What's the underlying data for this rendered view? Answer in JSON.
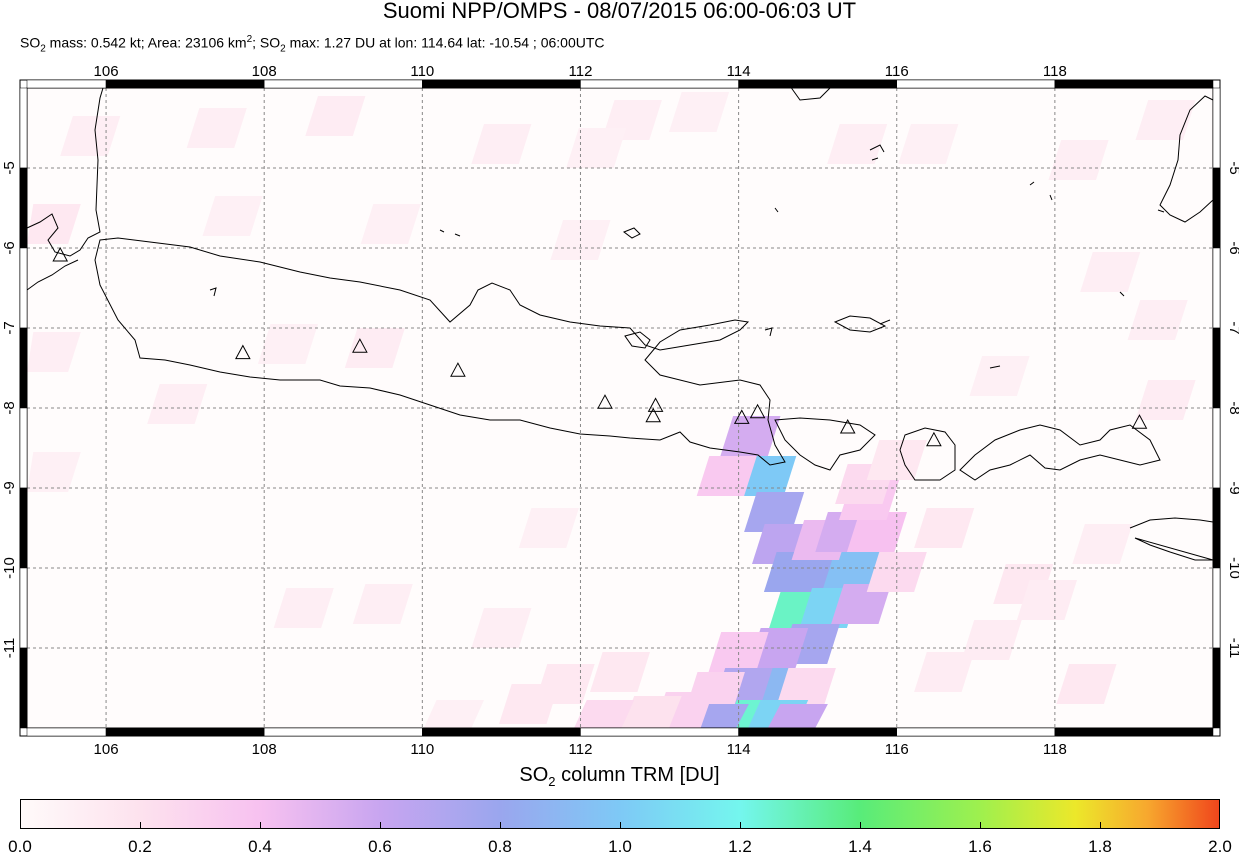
{
  "title": "Suomi NPP/OMPS - 08/07/2015 06:00-06:03 UT",
  "subtitle": {
    "so2_label": "SO",
    "so2_sub": "2",
    "mass_text": " mass: 0.542 kt; Area: 23106 km",
    "area_sup": "2",
    "sep": "; SO",
    "max_sub": "2",
    "max_text": " max: 1.27 DU at lon: 114.64 lat: -10.54 ; 06:00UTC"
  },
  "map": {
    "lon_range": [
      105,
      120
    ],
    "lat_range": [
      -12,
      -4
    ],
    "lon_ticks": [
      "106",
      "108",
      "110",
      "112",
      "114",
      "116",
      "118"
    ],
    "lat_ticks": [
      "-5",
      "-6",
      "-7",
      "-8",
      "-9",
      "-10",
      "-11"
    ],
    "grid": true,
    "volcano_icon": "triangle-icon",
    "volcanoes": [
      {
        "lon": 105.42,
        "lat": -6.1
      },
      {
        "lon": 107.73,
        "lat": -7.32
      },
      {
        "lon": 109.21,
        "lat": -7.24
      },
      {
        "lon": 110.45,
        "lat": -7.54
      },
      {
        "lon": 112.31,
        "lat": -7.94
      },
      {
        "lon": 112.95,
        "lat": -7.98
      },
      {
        "lon": 112.92,
        "lat": -8.11
      },
      {
        "lon": 114.04,
        "lat": -8.13
      },
      {
        "lon": 114.24,
        "lat": -8.06
      },
      {
        "lon": 115.38,
        "lat": -8.25
      },
      {
        "lon": 116.47,
        "lat": -8.41
      },
      {
        "lon": 119.07,
        "lat": -8.19
      }
    ],
    "so2_pixels": [
      {
        "lon": 114.15,
        "lat": -8.35,
        "du": 0.55
      },
      {
        "lon": 114.35,
        "lat": -8.85,
        "du": 1.0
      },
      {
        "lon": 113.85,
        "lat": -8.85,
        "du": 0.35
      },
      {
        "lon": 114.45,
        "lat": -9.3,
        "du": 0.75
      },
      {
        "lon": 114.55,
        "lat": -9.7,
        "du": 0.65
      },
      {
        "lon": 114.7,
        "lat": -10.05,
        "du": 0.8
      },
      {
        "lon": 115.05,
        "lat": -10.05,
        "du": 0.8
      },
      {
        "lon": 115.45,
        "lat": -10.0,
        "du": 0.95
      },
      {
        "lon": 115.05,
        "lat": -9.65,
        "du": 0.45
      },
      {
        "lon": 115.35,
        "lat": -9.55,
        "du": 0.55
      },
      {
        "lon": 115.75,
        "lat": -9.55,
        "du": 0.4
      },
      {
        "lon": 115.65,
        "lat": -9.15,
        "du": 0.35
      },
      {
        "lon": 114.75,
        "lat": -10.55,
        "du": 1.27
      },
      {
        "lon": 115.15,
        "lat": -10.5,
        "du": 1.05
      },
      {
        "lon": 115.55,
        "lat": -10.45,
        "du": 0.55
      },
      {
        "lon": 114.9,
        "lat": -10.95,
        "du": 0.75
      },
      {
        "lon": 114.5,
        "lat": -11.0,
        "du": 0.6
      },
      {
        "lon": 114.0,
        "lat": -11.05,
        "du": 0.35
      },
      {
        "lon": 114.4,
        "lat": -11.5,
        "du": 0.9
      },
      {
        "lon": 114.05,
        "lat": -11.5,
        "du": 0.7
      },
      {
        "lon": 114.85,
        "lat": -11.5,
        "du": 0.25
      },
      {
        "lon": 113.7,
        "lat": -11.55,
        "du": 0.3
      },
      {
        "lon": 114.2,
        "lat": -11.9,
        "du": 1.25
      },
      {
        "lon": 114.5,
        "lat": -11.9,
        "du": 1.05
      },
      {
        "lon": 113.75,
        "lat": -11.95,
        "du": 0.75
      },
      {
        "lon": 114.75,
        "lat": -11.95,
        "du": 0.6
      },
      {
        "lon": 113.3,
        "lat": -11.8,
        "du": 0.3
      },
      {
        "lon": 112.9,
        "lat": -11.85,
        "du": 0.2
      },
      {
        "lon": 112.3,
        "lat": -11.9,
        "du": 0.25
      },
      {
        "lon": 112.5,
        "lat": -11.3,
        "du": 0.15
      },
      {
        "lon": 111.8,
        "lat": -11.45,
        "du": 0.15
      },
      {
        "lon": 111.35,
        "lat": -11.7,
        "du": 0.15
      },
      {
        "lon": 111.0,
        "lat": -10.75,
        "du": 0.1
      },
      {
        "lon": 109.5,
        "lat": -10.45,
        "du": 0.1
      },
      {
        "lon": 108.5,
        "lat": -10.5,
        "du": 0.1
      },
      {
        "lon": 116.0,
        "lat": -10.05,
        "du": 0.25
      },
      {
        "lon": 116.6,
        "lat": -9.5,
        "du": 0.15
      },
      {
        "lon": 117.6,
        "lat": -10.2,
        "du": 0.15
      },
      {
        "lon": 117.2,
        "lat": -10.9,
        "du": 0.12
      },
      {
        "lon": 116.6,
        "lat": -11.3,
        "du": 0.12
      },
      {
        "lon": 118.4,
        "lat": -11.45,
        "du": 0.15
      },
      {
        "lon": 117.9,
        "lat": -10.4,
        "du": 0.12
      },
      {
        "lon": 118.6,
        "lat": -9.7,
        "du": 0.1
      },
      {
        "lon": 115.6,
        "lat": -8.95,
        "du": 0.25
      },
      {
        "lon": 116.0,
        "lat": -8.65,
        "du": 0.15
      },
      {
        "lon": 109.4,
        "lat": -7.25,
        "du": 0.12
      },
      {
        "lon": 108.3,
        "lat": -7.2,
        "du": 0.08
      },
      {
        "lon": 106.9,
        "lat": -7.95,
        "du": 0.1
      },
      {
        "lon": 105.3,
        "lat": -7.3,
        "du": 0.1
      },
      {
        "lon": 105.3,
        "lat": -8.8,
        "du": 0.08
      },
      {
        "lon": 112.65,
        "lat": -4.4,
        "du": 0.1
      },
      {
        "lon": 112.2,
        "lat": -4.75,
        "du": 0.08
      },
      {
        "lon": 111.0,
        "lat": -4.7,
        "du": 0.1
      },
      {
        "lon": 108.9,
        "lat": -4.35,
        "du": 0.12
      },
      {
        "lon": 107.4,
        "lat": -4.5,
        "du": 0.1
      },
      {
        "lon": 105.8,
        "lat": -4.6,
        "du": 0.1
      },
      {
        "lon": 105.3,
        "lat": -5.7,
        "du": 0.15
      },
      {
        "lon": 107.6,
        "lat": -5.6,
        "du": 0.08
      },
      {
        "lon": 109.6,
        "lat": -5.7,
        "du": 0.08
      },
      {
        "lon": 112.0,
        "lat": -5.9,
        "du": 0.08
      },
      {
        "lon": 115.5,
        "lat": -4.7,
        "du": 0.1
      },
      {
        "lon": 116.4,
        "lat": -4.7,
        "du": 0.08
      },
      {
        "lon": 113.5,
        "lat": -4.3,
        "du": 0.08
      },
      {
        "lon": 118.7,
        "lat": -6.3,
        "du": 0.1
      },
      {
        "lon": 119.3,
        "lat": -6.9,
        "du": 0.1
      },
      {
        "lon": 119.4,
        "lat": -7.9,
        "du": 0.12
      },
      {
        "lon": 117.3,
        "lat": -7.6,
        "du": 0.08
      },
      {
        "lon": 118.3,
        "lat": -4.9,
        "du": 0.1
      },
      {
        "lon": 119.4,
        "lat": -4.4,
        "du": 0.1
      },
      {
        "lon": 111.6,
        "lat": -9.5,
        "du": 0.08
      },
      {
        "lon": 110.4,
        "lat": -11.9,
        "du": 0.08
      }
    ]
  },
  "colorbar": {
    "title_prefix": "SO",
    "title_sub": "2",
    "title_suffix": " column TRM [DU]",
    "ticks": [
      "0.0",
      "0.2",
      "0.4",
      "0.6",
      "0.8",
      "1.0",
      "1.2",
      "1.4",
      "1.6",
      "1.8",
      "2.0"
    ],
    "range": [
      0,
      2
    ]
  }
}
